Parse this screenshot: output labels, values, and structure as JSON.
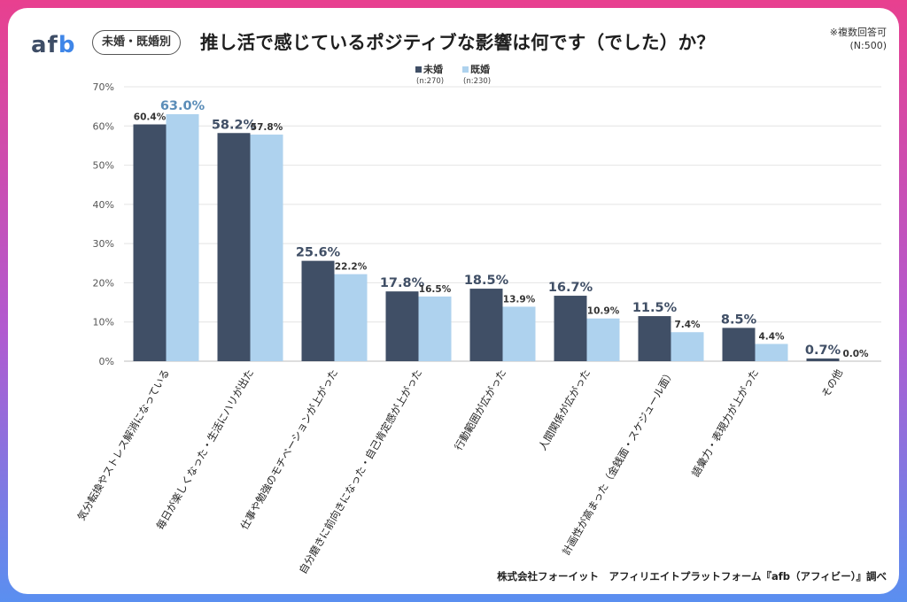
{
  "header": {
    "logo": "afb",
    "badge": "未婚・既婚別",
    "title": "推し活で感じているポジティブな影響は何です（でした）か？",
    "note_line1": "※複数回答可",
    "note_line2": "(N:500)"
  },
  "footer": {
    "credit": "株式会社フォーイット　アフィリエイトプラットフォーム『afb（アフィビー）』調べ"
  },
  "colors": {
    "unmarried": "#404f66",
    "married": "#aed2ee",
    "label_highlight": "#5b8db8"
  },
  "chart_data": {
    "type": "bar",
    "title": "推し活で感じているポジティブな影響は何です（でした）か？",
    "xlabel": "",
    "ylabel": "",
    "ylim": [
      0,
      70
    ],
    "yticks": [
      "0%",
      "10%",
      "20%",
      "30%",
      "40%",
      "50%",
      "60%",
      "70%"
    ],
    "grid": true,
    "legend_position": "top-center",
    "categories": [
      "気分転換やストレス解消になっている",
      "毎日が楽しくなった・生活にハリが出た",
      "仕事や勉強のモチベーションが上がった",
      "自分磨きに前向きになった・自己肯定感が上がった",
      "行動範囲が広がった",
      "人間関係が広がった",
      "計画性が高まった（金銭面・スケジュール面）",
      "語彙力・表現力が上がった",
      "その他"
    ],
    "series": [
      {
        "name": "未婚",
        "sample": "(n:270)",
        "values": [
          60.4,
          58.2,
          25.6,
          17.8,
          18.5,
          16.7,
          11.5,
          8.5,
          0.7
        ],
        "labels": [
          "60.4%",
          "58.2%",
          "25.6%",
          "17.8%",
          "18.5%",
          "16.7%",
          "11.5%",
          "8.5%",
          "0.7%"
        ]
      },
      {
        "name": "既婚",
        "sample": "(n:230)",
        "values": [
          63.0,
          57.8,
          22.2,
          16.5,
          13.9,
          10.9,
          7.4,
          4.4,
          0.0
        ],
        "labels": [
          "63.0%",
          "57.8%",
          "22.2%",
          "16.5%",
          "13.9%",
          "10.9%",
          "7.4%",
          "4.4%",
          "0.0%"
        ]
      }
    ]
  }
}
